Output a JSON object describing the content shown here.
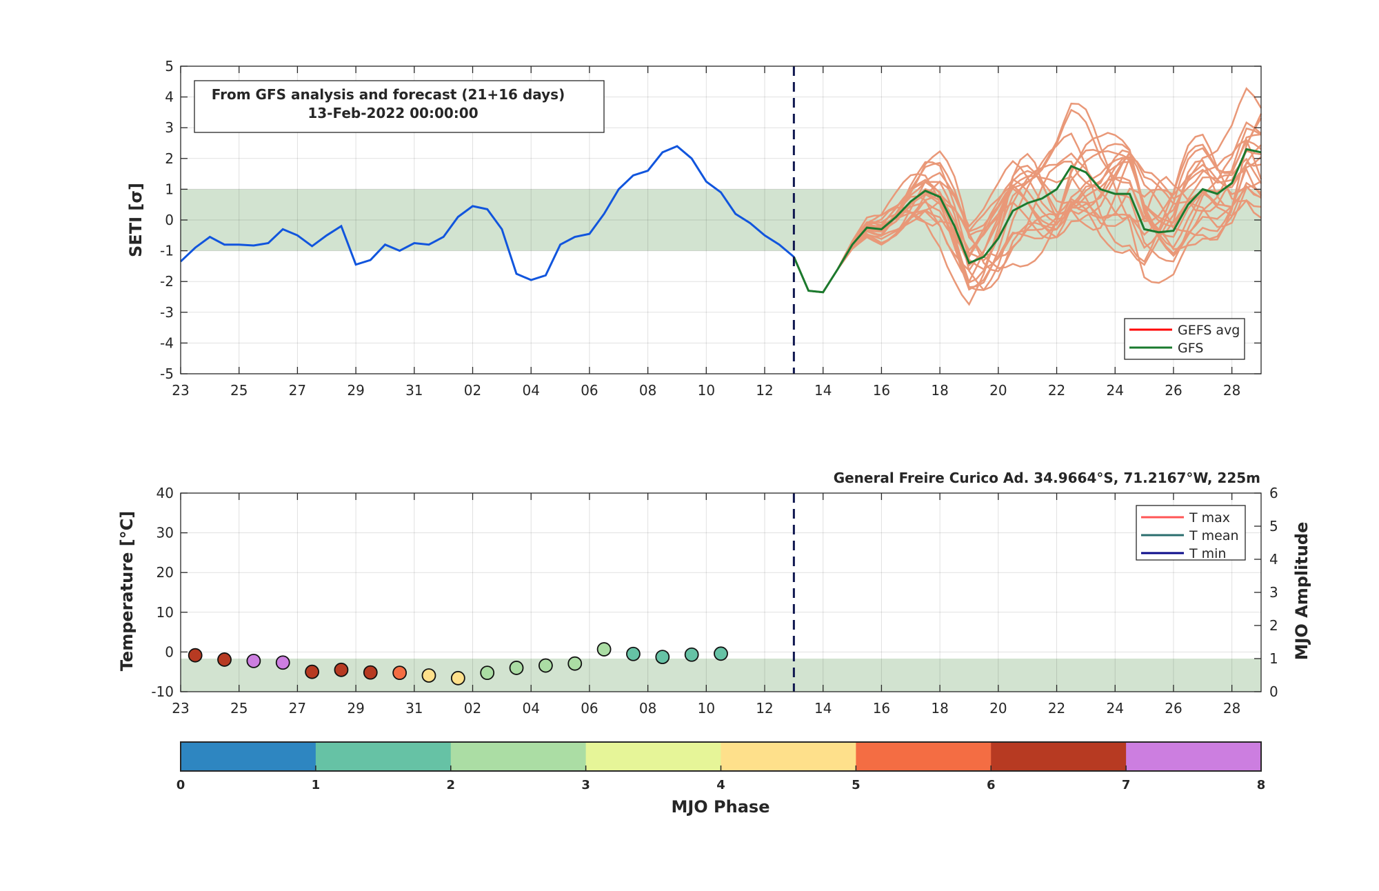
{
  "top_chart": {
    "ylabel": "SETI [σ]",
    "info_box": {
      "line1": "From GFS analysis and forecast (21+16 days)",
      "line2": "13-Feb-2022 00:00:00"
    },
    "legend": [
      {
        "label": "GEFS avg",
        "color": "#ff0000"
      },
      {
        "label": "GFS",
        "color": "#1a7a2e"
      }
    ]
  },
  "bottom_chart": {
    "ylabel": "Temperature [°C]",
    "ylabel_right": "MJO Amplitude",
    "station_title": "General Freire Curico Ad. 34.9664°S, 71.2167°W, 225m",
    "legend": [
      {
        "label": "T max",
        "color": "#ff5555"
      },
      {
        "label": "T mean",
        "color": "#2a6e6e"
      },
      {
        "label": "T min",
        "color": "#0a0a8a"
      }
    ]
  },
  "colorbar": {
    "label": "MJO Phase",
    "ticks": [
      "0",
      "1",
      "2",
      "3",
      "4",
      "5",
      "6",
      "7",
      "8"
    ],
    "colors": [
      "#2e86c1",
      "#66c2a5",
      "#abdda4",
      "#e6f598",
      "#fee08b",
      "#f46d43",
      "#b73a22",
      "#cc7ee0"
    ]
  },
  "chart_data": [
    {
      "type": "line",
      "x_tick_labels": [
        "23",
        "25",
        "27",
        "29",
        "31",
        "02",
        "04",
        "06",
        "08",
        "10",
        "12",
        "14",
        "16",
        "18",
        "20",
        "22",
        "24",
        "26",
        "28"
      ],
      "x_tick_days": [
        0,
        2,
        4,
        6,
        8,
        10,
        12,
        14,
        16,
        18,
        20,
        22,
        24,
        26,
        28,
        30,
        32,
        34,
        36
      ],
      "xlim": [
        0,
        37
      ],
      "ylim": [
        -5,
        5
      ],
      "y_ticks": [
        -5,
        -4,
        -3,
        -2,
        -1,
        0,
        1,
        2,
        3,
        4,
        5
      ],
      "normal_band": [
        -1,
        1
      ],
      "forecast_start_day": 21,
      "series": [
        {
          "name": "",
          "color": "#1155dd",
          "x": [
            0,
            0.5,
            1,
            1.5,
            2,
            2.5,
            3,
            3.5,
            4,
            4.5,
            5,
            5.5,
            6,
            6.5,
            7,
            7.5,
            8,
            8.5,
            9,
            9.5,
            10,
            10.5,
            11,
            11.5,
            12,
            12.5,
            13,
            13.5,
            14,
            14.5,
            15,
            15.5,
            16,
            16.5,
            17,
            17.5,
            18,
            18.5,
            19,
            19.5,
            20,
            20.5,
            21
          ],
          "y": [
            -1.35,
            -0.9,
            -0.55,
            -0.8,
            -0.8,
            -0.83,
            -0.75,
            -0.3,
            -0.5,
            -0.85,
            -0.5,
            -0.2,
            -1.45,
            -1.3,
            -0.8,
            -1.0,
            -0.75,
            -0.8,
            -0.55,
            0.1,
            0.45,
            0.35,
            -0.3,
            -1.75,
            -1.95,
            -1.8,
            -0.8,
            -0.55,
            -0.45,
            0.2,
            1.0,
            1.45,
            1.6,
            2.2,
            2.4,
            2.0,
            1.25,
            0.9,
            0.2,
            -0.1,
            -0.5,
            -0.8,
            -1.2
          ]
        },
        {
          "name": "GFS",
          "color": "#1a7a2e",
          "x": [
            21,
            21.5,
            22,
            22.5,
            23,
            23.5,
            24,
            24.5,
            25,
            25.5,
            26,
            26.5,
            27,
            27.5,
            28,
            28.5,
            29,
            29.5,
            30,
            30.5,
            31,
            31.5,
            32,
            32.5,
            33,
            33.5,
            34,
            34.5,
            35,
            35.5,
            36,
            36.5,
            37
          ],
          "y": [
            -1.2,
            -2.3,
            -2.35,
            -1.6,
            -0.8,
            -0.25,
            -0.3,
            0.1,
            0.6,
            0.95,
            0.75,
            -0.2,
            -1.4,
            -1.2,
            -0.6,
            0.3,
            0.55,
            0.7,
            1.0,
            1.75,
            1.55,
            1.0,
            0.85,
            0.85,
            -0.3,
            -0.4,
            -0.35,
            0.5,
            1.0,
            0.85,
            1.2,
            2.3,
            2.2
          ]
        }
      ]
    },
    {
      "type": "scatter",
      "x_tick_labels": [
        "23",
        "25",
        "27",
        "29",
        "31",
        "02",
        "04",
        "06",
        "08",
        "10",
        "12",
        "14",
        "16",
        "18",
        "20",
        "22",
        "24",
        "26",
        "28"
      ],
      "x_tick_days": [
        0,
        2,
        4,
        6,
        8,
        10,
        12,
        14,
        16,
        18,
        20,
        22,
        24,
        26,
        28,
        30,
        32,
        34,
        36
      ],
      "xlim": [
        0,
        37
      ],
      "ylim": [
        -10,
        40
      ],
      "y_ticks": [
        -10,
        0,
        10,
        20,
        30,
        40
      ],
      "ylim_right": [
        0,
        6
      ],
      "y_ticks_right": [
        0,
        1,
        2,
        3,
        4,
        5,
        6
      ],
      "normal_band_amplitude": [
        0,
        1
      ],
      "forecast_start_day": 21,
      "points": [
        {
          "day": 0.5,
          "amplitude": 1.1,
          "phase": 7
        },
        {
          "day": 1.5,
          "amplitude": 0.97,
          "phase": 7
        },
        {
          "day": 2.5,
          "amplitude": 0.93,
          "phase": 8
        },
        {
          "day": 3.5,
          "amplitude": 0.88,
          "phase": 8
        },
        {
          "day": 4.5,
          "amplitude": 0.6,
          "phase": 7
        },
        {
          "day": 5.5,
          "amplitude": 0.66,
          "phase": 7
        },
        {
          "day": 6.5,
          "amplitude": 0.58,
          "phase": 7
        },
        {
          "day": 7.5,
          "amplitude": 0.57,
          "phase": 6
        },
        {
          "day": 8.5,
          "amplitude": 0.49,
          "phase": 5
        },
        {
          "day": 9.5,
          "amplitude": 0.41,
          "phase": 5
        },
        {
          "day": 10.5,
          "amplitude": 0.57,
          "phase": 3
        },
        {
          "day": 11.5,
          "amplitude": 0.72,
          "phase": 3
        },
        {
          "day": 12.5,
          "amplitude": 0.79,
          "phase": 3
        },
        {
          "day": 13.5,
          "amplitude": 0.85,
          "phase": 3
        },
        {
          "day": 14.5,
          "amplitude": 1.28,
          "phase": 3
        },
        {
          "day": 15.5,
          "amplitude": 1.14,
          "phase": 2
        },
        {
          "day": 16.5,
          "amplitude": 1.05,
          "phase": 2
        },
        {
          "day": 17.5,
          "amplitude": 1.12,
          "phase": 2
        },
        {
          "day": 18.5,
          "amplitude": 1.15,
          "phase": 2
        }
      ]
    }
  ]
}
